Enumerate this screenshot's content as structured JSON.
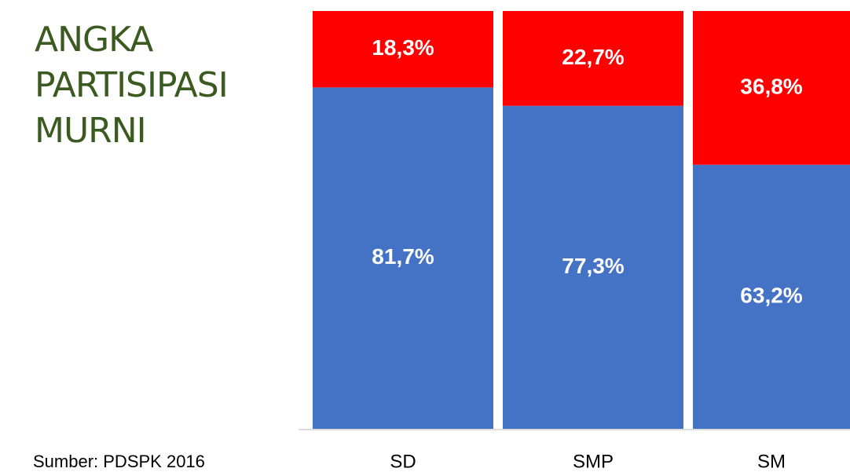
{
  "chart_data": {
    "type": "stacked_bar_100",
    "title": "ANGKA PARTISIPASI MURNI",
    "annotation": "Sumber: PDSPK 2016",
    "categories": [
      "SD",
      "SMP",
      "SM"
    ],
    "series": [
      {
        "color": "#4472c4",
        "values": [
          81.7,
          77.3,
          63.2
        ],
        "value_labels": [
          "81,7%",
          "77,3%",
          "63,2%"
        ]
      },
      {
        "color": "#ff0000",
        "values": [
          18.3,
          22.7,
          36.8
        ],
        "value_labels": [
          "18,3%",
          "22,7%",
          "36,8%"
        ]
      }
    ],
    "ylim": [
      0,
      100
    ]
  }
}
